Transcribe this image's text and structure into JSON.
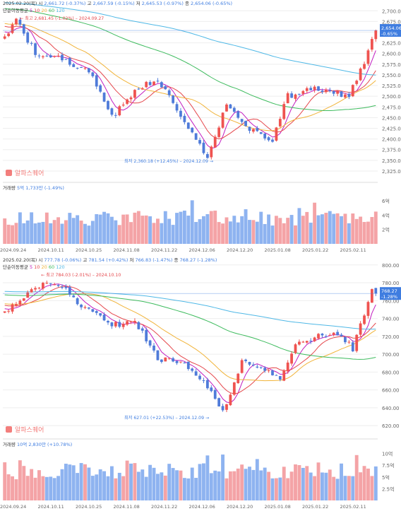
{
  "colors": {
    "up": "#ef5350",
    "down": "#4f7bd9",
    "vol_up": "#f4a3a6",
    "vol_down": "#8eb3f0",
    "ma5": "#c21cc0",
    "ma10": "#e5484d",
    "ma20": "#f1b43a",
    "ma60": "#3dbb5d",
    "ma120": "#4fb8e6",
    "grid": "#eeeeee",
    "axis_text": "#666666",
    "price_tag": "#3f7de0",
    "low_note": "#3f7de0",
    "high_note": "#e5484d"
  },
  "x_axis_dates": [
    "2024.09.24",
    "2024.10.11",
    "2024.10.25",
    "2024.11.08",
    "2024.11.22",
    "2024.12.06",
    "2024.12.20",
    "2025.01.08",
    "2025.01.22",
    "2025.02.11"
  ],
  "chart_data": [
    {
      "type": "candlestick",
      "date": "2025.02.20(목)",
      "ohlc_line": [
        {
          "label": "시",
          "value": "2,661.72",
          "pct": "(-0.37%)"
        },
        {
          "label": "고",
          "value": "2,667.59",
          "pct": "(-0.15%)"
        },
        {
          "label": "저",
          "value": "2,645.53",
          "pct": "(-0.97%)"
        },
        {
          "label": "종",
          "value": "2,654.06",
          "pct": "(-0.65%)"
        }
      ],
      "ma_title": "단순이동평균",
      "ma_periods": [
        "5",
        "10",
        "20",
        "60",
        "120"
      ],
      "high_note": "← 최고 2,681.45 (-1.02%) – 2024.09.27",
      "low_note": "최저 2,360.18 (+12.45%) – 2024.12.09 →",
      "last_price": "2,654.06",
      "last_pct": "-0.65%",
      "y_ticks": [
        "2,700.00",
        "2,675.00",
        "2,650.00",
        "2,625.00",
        "2,600.00",
        "2,575.00",
        "2,550.00",
        "2,525.00",
        "2,500.00",
        "2,475.00",
        "2,450.00",
        "2,425.00",
        "2,400.00",
        "2,375.00",
        "2,350.00",
        "2,325.00"
      ],
      "ylim": [
        2315,
        2712
      ],
      "start": 2640,
      "end": 2654,
      "low": 2360,
      "high": 2681,
      "n": 98,
      "volume": {
        "label": "거래량",
        "value": "5억 1,733만",
        "pct": "(-1.49%)",
        "y_ticks": [
          "6억",
          "4억",
          "2억"
        ],
        "ylim": [
          0,
          7.2
        ],
        "base": 4.6
      },
      "watermark": "알파스퀘어"
    },
    {
      "type": "candlestick",
      "date": "2025.02.20(목)",
      "ohlc_line": [
        {
          "label": "시",
          "value": "777.78",
          "pct": "(-0.06%)"
        },
        {
          "label": "고",
          "value": "781.54",
          "pct": "(+0.42%)"
        },
        {
          "label": "저",
          "value": "766.83",
          "pct": "(-1.47%)"
        },
        {
          "label": "종",
          "value": "768.27",
          "pct": "(-1.28%)"
        }
      ],
      "ma_title": "단순이동평균",
      "ma_periods": [
        "5",
        "10",
        "20",
        "60",
        "120"
      ],
      "high_note": "← 최고 784.03 (-2.01%) – 2024.10.10",
      "low_note": "최저 627.01 (+22.53%) – 2024.12.09 →",
      "last_price": "768.27",
      "last_pct": "-1.28%",
      "y_ticks": [
        "800.00",
        "780.00",
        "760.00",
        "740.00",
        "720.00",
        "700.00",
        "680.00",
        "660.00",
        "640.00",
        "620.00"
      ],
      "ylim": [
        613,
        803
      ],
      "start": 748,
      "end": 768,
      "low": 627,
      "high": 784,
      "n": 98,
      "volume": {
        "label": "거래량",
        "value": "10억 2,830만",
        "pct": "(+10.78%)",
        "y_ticks": [
          "10억",
          "7.5억",
          "5억",
          "2.5억"
        ],
        "ylim": [
          0,
          11
        ],
        "base": 8.2
      },
      "watermark": "알파스퀘어"
    }
  ]
}
